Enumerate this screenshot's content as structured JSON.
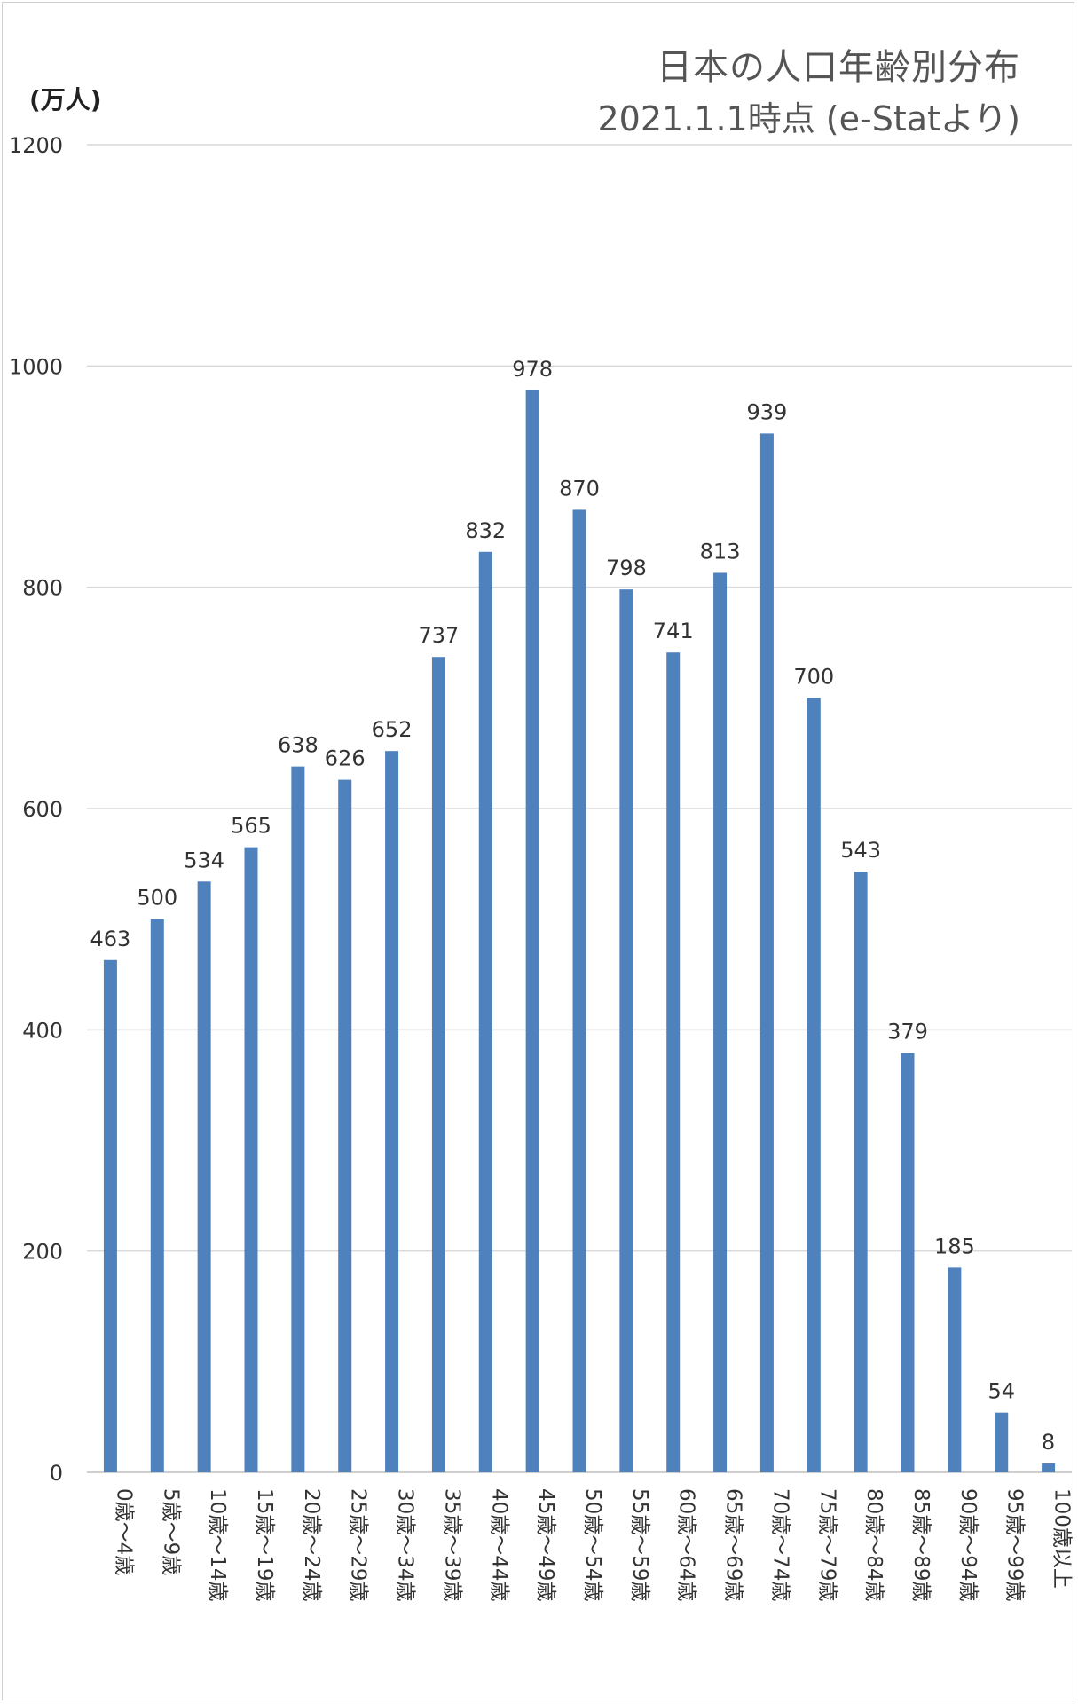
{
  "chart_data": {
    "type": "bar",
    "title": "日本の人口年齢別分布",
    "subtitle": "2021.1.1時点 (e-Statより)",
    "ylabel": "(万人)",
    "xlabel": "",
    "ylim": [
      0,
      1200
    ],
    "yticks": [
      0,
      200,
      400,
      600,
      800,
      1000,
      1200
    ],
    "grid": true,
    "bar_color": "#4F81BD",
    "categories": [
      "0歳～4歳",
      "5歳～9歳",
      "10歳～14歳",
      "15歳～19歳",
      "20歳～24歳",
      "25歳～29歳",
      "30歳～34歳",
      "35歳～39歳",
      "40歳～44歳",
      "45歳～49歳",
      "50歳～54歳",
      "55歳～59歳",
      "60歳～64歳",
      "65歳～69歳",
      "70歳～74歳",
      "75歳～79歳",
      "80歳～84歳",
      "85歳～89歳",
      "90歳～94歳",
      "95歳～99歳",
      "100歳以上"
    ],
    "values": [
      463,
      500,
      534,
      565,
      638,
      626,
      652,
      737,
      832,
      978,
      870,
      798,
      741,
      813,
      939,
      700,
      543,
      379,
      185,
      54,
      8
    ]
  }
}
